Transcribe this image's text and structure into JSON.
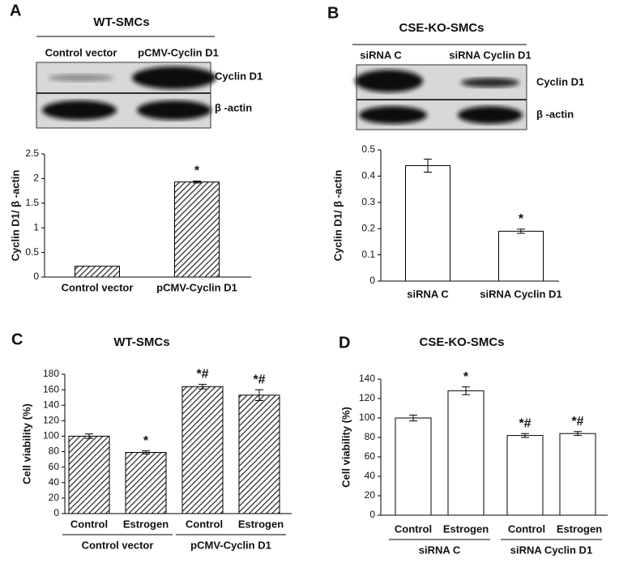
{
  "chart_data": [
    {
      "type": "bar",
      "panel": "A",
      "title": "WT-SMCs",
      "lanes": [
        "Control vector",
        "pCMV-Cyclin D1"
      ],
      "bands": [
        "Cyclin D1",
        "β -actin"
      ],
      "ylabel": "Cyclin D1/ β -actin",
      "categories": [
        "Control vector",
        "pCMV-Cyclin D1"
      ],
      "values": [
        0.22,
        1.93
      ],
      "errors": [
        null,
        0.02
      ],
      "annotations": [
        null,
        "*"
      ],
      "ylim": [
        0,
        2.5
      ],
      "yticks": [
        0,
        0.5,
        1,
        1.5,
        2,
        2.5
      ],
      "fill": "hatch"
    },
    {
      "type": "bar",
      "panel": "B",
      "title": "CSE-KO-SMCs",
      "lanes": [
        "siRNA C",
        "siRNA Cyclin D1"
      ],
      "bands": [
        "Cyclin D1",
        "β -actin"
      ],
      "ylabel": "Cyclin D1/ β -actin",
      "categories": [
        "siRNA C",
        "siRNA Cyclin D1"
      ],
      "values": [
        0.44,
        0.19
      ],
      "errors": [
        0.025,
        0.008
      ],
      "annotations": [
        null,
        "*"
      ],
      "ylim": [
        0,
        0.5
      ],
      "yticks": [
        0,
        0.1,
        0.2,
        0.3,
        0.4,
        0.5
      ],
      "fill": "open"
    },
    {
      "type": "bar",
      "panel": "C",
      "title": "WT-SMCs",
      "ylabel": "Cell viability (%)",
      "categories": [
        "Control",
        "Estrogen",
        "Control",
        "Estrogen"
      ],
      "groups": [
        "Control vector",
        "pCMV-Cyclin D1"
      ],
      "values": [
        100,
        79,
        164,
        153
      ],
      "errors": [
        3,
        2,
        3,
        7
      ],
      "annotations": [
        null,
        "*",
        "*#",
        "*#"
      ],
      "ylim": [
        0,
        180
      ],
      "yticks": [
        0,
        20,
        40,
        60,
        80,
        100,
        120,
        140,
        160,
        180
      ],
      "fill": "hatch"
    },
    {
      "type": "bar",
      "panel": "D",
      "title": "CSE-KO-SMCs",
      "ylabel": "Cell viability (%)",
      "categories": [
        "Control",
        "Estrogen",
        "Control",
        "Estrogen"
      ],
      "groups": [
        "siRNA C",
        "siRNA Cyclin D1"
      ],
      "values": [
        100,
        128,
        82,
        84
      ],
      "errors": [
        3,
        4,
        2,
        2
      ],
      "annotations": [
        null,
        "*",
        "*#",
        "*#"
      ],
      "ylim": [
        0,
        140
      ],
      "yticks": [
        0,
        20,
        40,
        60,
        80,
        100,
        120,
        140
      ],
      "fill": "open"
    }
  ]
}
